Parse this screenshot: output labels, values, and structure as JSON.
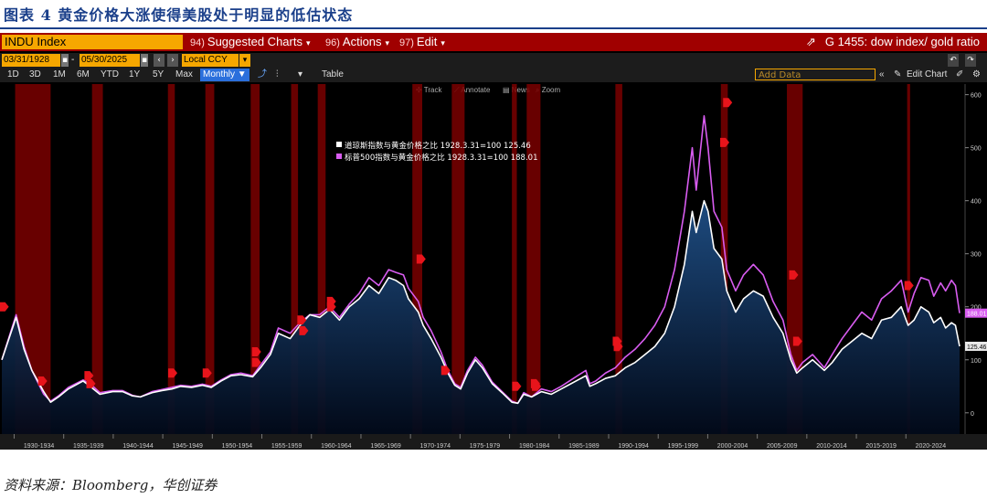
{
  "caption": "图表 4  黄金价格大涨使得美股处于明显的低估状态",
  "source": "资料来源：Bloomberg，华创证券",
  "toolbar": {
    "ticker": "INDU Index",
    "menus": [
      {
        "num": "94)",
        "label": "Suggested Charts"
      },
      {
        "num": "96)",
        "label": "Actions"
      },
      {
        "num": "97)",
        "label": "Edit"
      }
    ],
    "title_right": "G 1455: dow index/ gold ratio",
    "start_date": "03/31/1928",
    "end_date": "05/30/2025",
    "currency": "Local CCY",
    "periods": [
      "1D",
      "3D",
      "1M",
      "6M",
      "YTD",
      "1Y",
      "5Y",
      "Max"
    ],
    "frequency": "Monthly",
    "table_label": "Table",
    "add_data_placeholder": "Add Data",
    "edit_chart_label": "Edit Chart",
    "plot_tools": [
      "Track",
      "Annotate",
      "News",
      "Zoom"
    ]
  },
  "colors": {
    "dow": "#ffffff",
    "sp500": "#d85cf0",
    "recession": "#7a0000",
    "area_top": "#1f4f86",
    "area_bottom": "#020a1a",
    "marker": "#e8141b"
  },
  "chart_data": {
    "type": "line",
    "title": "",
    "ylim": [
      -40,
      620
    ],
    "yticks": [
      0,
      100,
      200,
      300,
      400,
      500,
      600
    ],
    "xlim": [
      1928.25,
      2025.42
    ],
    "xticks": [
      "1930-1934",
      "1935-1939",
      "1940-1944",
      "1945-1949",
      "1950-1954",
      "1955-1959",
      "1960-1964",
      "1965-1969",
      "1970-1974",
      "1975-1979",
      "1980-1984",
      "1985-1989",
      "1990-1994",
      "1995-1999",
      "2000-2004",
      "2005-2009",
      "2010-2014",
      "2015-2019",
      "2020-2024"
    ],
    "recession_periods": [
      [
        1929.6,
        1933.2
      ],
      [
        1937.4,
        1938.5
      ],
      [
        1945.1,
        1945.8
      ],
      [
        1948.9,
        1949.8
      ],
      [
        1953.5,
        1954.4
      ],
      [
        1957.6,
        1958.3
      ],
      [
        1960.3,
        1961.1
      ],
      [
        1969.9,
        1970.9
      ],
      [
        1973.9,
        1975.2
      ],
      [
        1980.0,
        1980.5
      ],
      [
        1981.5,
        1982.9
      ],
      [
        1990.5,
        1991.2
      ],
      [
        2001.2,
        2001.9
      ],
      [
        2007.9,
        2009.5
      ],
      [
        2020.1,
        2020.4
      ]
    ],
    "series": [
      {
        "name": "道琼斯指数与黄金价格之比 1928.3.31=100",
        "last": "125.46",
        "x": [
          1928.25,
          1929.7,
          1930.5,
          1931.3,
          1932.5,
          1933.2,
          1934.0,
          1935.0,
          1936.5,
          1937.2,
          1938.2,
          1939.5,
          1940.5,
          1941.5,
          1942.3,
          1943.5,
          1944.5,
          1945.5,
          1946.4,
          1947.5,
          1948.6,
          1949.5,
          1950.5,
          1951.5,
          1952.5,
          1953.7,
          1954.5,
          1955.5,
          1956.3,
          1957.5,
          1958.5,
          1959.5,
          1960.5,
          1961.5,
          1962.5,
          1963.5,
          1964.5,
          1965.5,
          1966.5,
          1967.5,
          1968.2,
          1969.0,
          1969.5,
          1970.5,
          1971.0,
          1971.8,
          1972.8,
          1973.5,
          1974.2,
          1974.8,
          1975.5,
          1976.3,
          1977.0,
          1978.0,
          1979.0,
          1980.0,
          1980.6,
          1981.2,
          1982.0,
          1983.0,
          1984.0,
          1985.0,
          1986.0,
          1987.5,
          1987.9,
          1988.5,
          1989.5,
          1990.5,
          1991.5,
          1992.5,
          1993.5,
          1994.5,
          1995.5,
          1996.5,
          1997.5,
          1998.3,
          1998.7,
          1999.5,
          1999.9,
          2000.5,
          2001.3,
          2001.8,
          2002.7,
          2003.5,
          2004.5,
          2005.5,
          2006.5,
          2007.5,
          2008.3,
          2008.9,
          2009.5,
          2010.5,
          2011.7,
          2012.5,
          2013.5,
          2014.5,
          2015.5,
          2016.5,
          2017.5,
          2018.5,
          2019.5,
          2020.2,
          2020.8,
          2021.5,
          2022.3,
          2022.8,
          2023.5,
          2024.0,
          2024.6,
          2025.0,
          2025.42
        ],
        "y": [
          100,
          180,
          120,
          80,
          40,
          20,
          30,
          45,
          60,
          50,
          35,
          40,
          40,
          32,
          30,
          38,
          42,
          45,
          50,
          48,
          52,
          48,
          60,
          70,
          72,
          68,
          85,
          110,
          150,
          140,
          165,
          185,
          180,
          195,
          175,
          200,
          215,
          240,
          225,
          255,
          250,
          240,
          215,
          190,
          165,
          140,
          105,
          75,
          52,
          45,
          75,
          100,
          85,
          55,
          38,
          20,
          18,
          35,
          30,
          40,
          35,
          45,
          55,
          70,
          50,
          55,
          65,
          70,
          85,
          95,
          110,
          125,
          150,
          200,
          280,
          380,
          340,
          400,
          380,
          310,
          290,
          230,
          190,
          215,
          230,
          220,
          180,
          150,
          100,
          75,
          85,
          100,
          80,
          95,
          120,
          135,
          150,
          140,
          175,
          180,
          200,
          165,
          175,
          200,
          190,
          170,
          180,
          160,
          170,
          165,
          125.46
        ]
      },
      {
        "name": "标普500指数与黄金价格之比 1928.3.31=100",
        "last": "188.01",
        "x": [
          1928.25,
          1929.7,
          1930.5,
          1931.3,
          1932.5,
          1933.2,
          1934.0,
          1935.0,
          1936.5,
          1937.2,
          1938.2,
          1939.5,
          1940.5,
          1941.5,
          1942.3,
          1943.5,
          1944.5,
          1945.5,
          1946.4,
          1947.5,
          1948.6,
          1949.5,
          1950.5,
          1951.5,
          1952.5,
          1953.7,
          1954.5,
          1955.5,
          1956.3,
          1957.5,
          1958.5,
          1959.5,
          1960.5,
          1961.5,
          1962.5,
          1963.5,
          1964.5,
          1965.5,
          1966.5,
          1967.5,
          1968.2,
          1969.0,
          1969.5,
          1970.5,
          1971.0,
          1971.8,
          1972.8,
          1973.5,
          1974.2,
          1974.8,
          1975.5,
          1976.3,
          1977.0,
          1978.0,
          1979.0,
          1980.0,
          1980.6,
          1981.2,
          1982.0,
          1983.0,
          1984.0,
          1985.0,
          1986.0,
          1987.5,
          1987.9,
          1988.5,
          1989.5,
          1990.5,
          1991.5,
          1992.5,
          1993.5,
          1994.5,
          1995.5,
          1996.5,
          1997.5,
          1998.3,
          1998.7,
          1999.5,
          1999.9,
          2000.5,
          2001.3,
          2001.8,
          2002.7,
          2003.5,
          2004.5,
          2005.5,
          2006.5,
          2007.5,
          2008.3,
          2008.9,
          2009.5,
          2010.5,
          2011.7,
          2012.5,
          2013.5,
          2014.5,
          2015.5,
          2016.5,
          2017.5,
          2018.5,
          2019.5,
          2020.2,
          2020.8,
          2021.5,
          2022.3,
          2022.8,
          2023.5,
          2024.0,
          2024.6,
          2025.0,
          2025.42
        ],
        "y": [
          100,
          185,
          125,
          80,
          35,
          22,
          32,
          48,
          62,
          55,
          38,
          42,
          42,
          33,
          30,
          40,
          44,
          48,
          52,
          50,
          54,
          50,
          62,
          72,
          75,
          70,
          90,
          115,
          160,
          150,
          170,
          185,
          185,
          200,
          180,
          205,
          225,
          255,
          240,
          270,
          265,
          260,
          235,
          210,
          180,
          155,
          115,
          80,
          55,
          48,
          80,
          105,
          90,
          58,
          40,
          22,
          18,
          38,
          30,
          45,
          40,
          50,
          62,
          80,
          55,
          60,
          75,
          85,
          105,
          120,
          140,
          165,
          200,
          270,
          380,
          500,
          420,
          560,
          500,
          380,
          350,
          270,
          230,
          260,
          280,
          260,
          210,
          175,
          110,
          80,
          95,
          110,
          85,
          110,
          140,
          165,
          190,
          175,
          215,
          230,
          250,
          190,
          225,
          255,
          250,
          220,
          245,
          230,
          250,
          240,
          188.01
        ]
      }
    ],
    "markers": [
      [
        1928.4,
        200
      ],
      [
        1932.3,
        60
      ],
      [
        1937.0,
        70
      ],
      [
        1937.2,
        55
      ],
      [
        1945.5,
        75
      ],
      [
        1949.0,
        75
      ],
      [
        1954.0,
        115
      ],
      [
        1954.0,
        95
      ],
      [
        1958.6,
        175
      ],
      [
        1958.8,
        155
      ],
      [
        1961.6,
        210
      ],
      [
        1961.6,
        200
      ],
      [
        1970.7,
        290
      ],
      [
        1973.2,
        80
      ],
      [
        1980.4,
        50
      ],
      [
        1982.3,
        55
      ],
      [
        1982.4,
        50
      ],
      [
        1990.6,
        135
      ],
      [
        1990.7,
        125
      ],
      [
        2001.8,
        585
      ],
      [
        2001.5,
        510
      ],
      [
        2008.5,
        260
      ],
      [
        2008.9,
        135
      ],
      [
        2020.2,
        240
      ]
    ]
  }
}
